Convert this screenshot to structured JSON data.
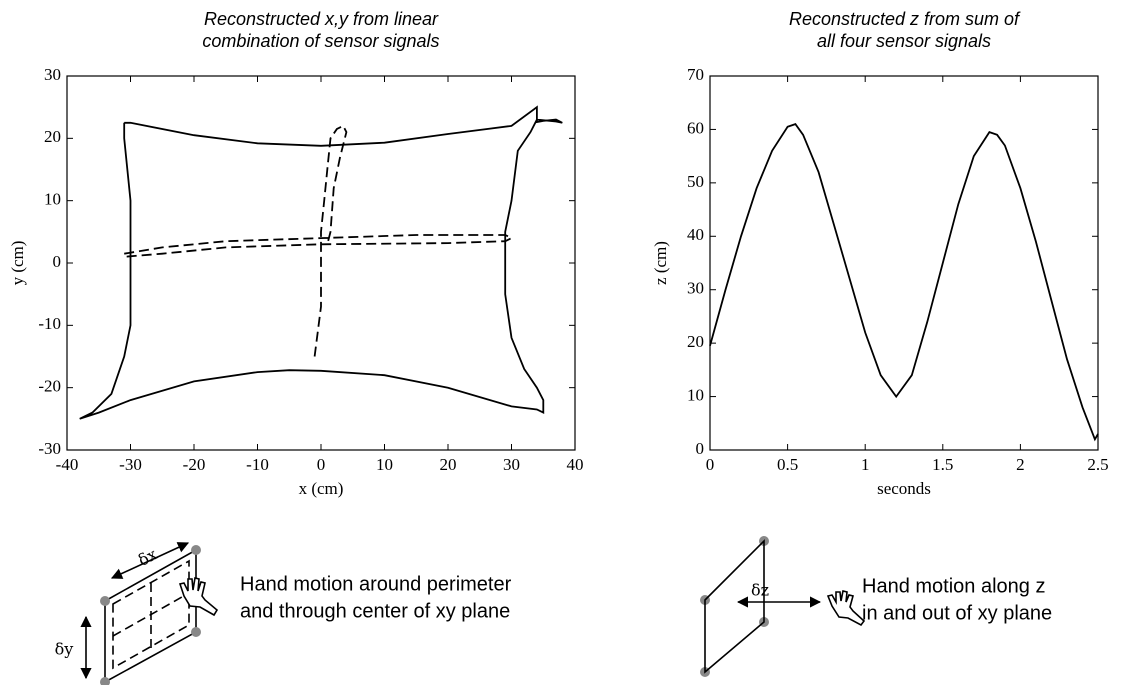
{
  "chart_data": [
    {
      "type": "line",
      "title": [
        "Reconstructed x,y from linear",
        "combination of sensor signals"
      ],
      "xlabel": "x (cm)",
      "ylabel": "y (cm)",
      "xlim": [
        -40,
        40
      ],
      "ylim": [
        -30,
        30
      ],
      "xticks": [
        -40,
        -30,
        -20,
        -10,
        0,
        10,
        20,
        30,
        40
      ],
      "yticks": [
        -30,
        -20,
        -10,
        0,
        10,
        20,
        30
      ],
      "series": [
        {
          "color": "#000000",
          "dash": false,
          "x": [
            -31,
            -30,
            -20,
            -10,
            0,
            10,
            20,
            30,
            34,
            34,
            34.5,
            35,
            37,
            38,
            37,
            34,
            33,
            31,
            30,
            29,
            29,
            29,
            30,
            32,
            34,
            35,
            35,
            34,
            30,
            20,
            10,
            0,
            -5,
            -10,
            -20,
            -30,
            -35,
            -38,
            -36,
            -33,
            -31,
            -30,
            -30,
            -30,
            -31,
            -31
          ],
          "values": [
            22.5,
            22.5,
            20.5,
            19.2,
            18.8,
            19.3,
            20.7,
            22,
            25,
            22.6,
            22.7,
            22.8,
            23,
            22.5,
            22.7,
            23,
            21,
            18,
            10,
            5,
            0,
            -5,
            -12,
            -17,
            -20,
            -22,
            -24,
            -23.5,
            -23,
            -20,
            -18,
            -17.3,
            -17.2,
            -17.5,
            -19,
            -22,
            -24,
            -25,
            -24,
            -21,
            -15,
            -10,
            0,
            10,
            20,
            22.5
          ]
        },
        {
          "color": "#000000",
          "dash": true,
          "x": [
            -1,
            -0.5,
            0,
            0,
            0,
            0.5,
            1,
            1.5,
            2.5,
            3.5,
            4,
            3,
            2,
            1.5,
            1,
            null,
            -31,
            -25,
            -15,
            0,
            15,
            29,
            30,
            29,
            20,
            0,
            -15,
            -25,
            -31
          ],
          "values": [
            -15,
            -11,
            -7,
            0,
            5,
            10,
            15,
            20,
            21.5,
            22,
            21,
            17,
            12,
            5,
            3,
            null,
            1.5,
            2.5,
            3.5,
            4,
            4.5,
            4.5,
            4,
            3.5,
            3.2,
            3,
            2.5,
            1.5,
            1
          ]
        }
      ],
      "note": [
        "Hand motion around perimeter",
        "and through center of xy plane"
      ],
      "diagram_labels": [
        "δx",
        "δy"
      ]
    },
    {
      "type": "line",
      "title": [
        "Reconstructed z from sum of",
        "all four sensor signals"
      ],
      "xlabel": "seconds",
      "ylabel": "z (cm)",
      "xlim": [
        0,
        2.5
      ],
      "ylim": [
        0,
        70
      ],
      "xticks": [
        0,
        0.5,
        1,
        1.5,
        2,
        2.5
      ],
      "yticks": [
        0,
        10,
        20,
        30,
        40,
        50,
        60,
        70
      ],
      "series": [
        {
          "color": "#000000",
          "dash": false,
          "x": [
            0,
            0.1,
            0.2,
            0.3,
            0.4,
            0.5,
            0.55,
            0.6,
            0.7,
            0.8,
            0.9,
            1.0,
            1.1,
            1.2,
            1.3,
            1.4,
            1.5,
            1.6,
            1.7,
            1.8,
            1.85,
            1.9,
            2.0,
            2.1,
            2.2,
            2.3,
            2.4,
            2.48,
            2.5
          ],
          "values": [
            19.5,
            30,
            40,
            49,
            56,
            60.5,
            61,
            59,
            52,
            42,
            32,
            22,
            14,
            10,
            14,
            24,
            35,
            46,
            55,
            59.5,
            59,
            57,
            49,
            39,
            28,
            17,
            8,
            2,
            3
          ]
        }
      ],
      "note": [
        "Hand motion along z",
        "in and out of xy plane"
      ],
      "diagram_labels": [
        "δz"
      ]
    }
  ]
}
